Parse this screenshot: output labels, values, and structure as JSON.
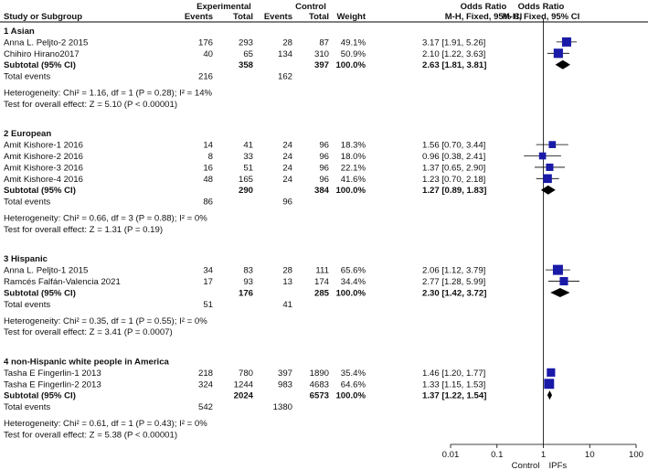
{
  "chart_data": {
    "type": "forest",
    "title": "",
    "header": {
      "study": "Study or Subgroup",
      "group1": "Experimental",
      "group2": "Control",
      "events": "Events",
      "total": "Total",
      "weight": "Weight",
      "effect_title": "Odds Ratio",
      "effect_method": "M-H, Fixed, 95% CI",
      "plot_title": "Odds Ratio",
      "plot_method": "M-H, Fixed, 95% CI"
    },
    "axis": {
      "scale": "log",
      "range": [
        0.01,
        100
      ],
      "ticks": [
        0.01,
        0.1,
        1,
        10,
        100
      ],
      "tick_labels": [
        "0.01",
        "0.1",
        "1",
        "10",
        "100"
      ],
      "null_value": 1,
      "favours_left": "Control",
      "favours_right": "IPFs"
    },
    "subgroups": [
      {
        "name": "1 Asian",
        "studies": [
          {
            "name": "Anna L. Peljto-2 2015",
            "e_events": "176",
            "e_total": "293",
            "c_events": "28",
            "c_total": "87",
            "weight": "49.1%",
            "or_text": "3.17 [1.91, 5.26]",
            "or": 3.17,
            "lo": 1.91,
            "hi": 5.26,
            "w": 49.1
          },
          {
            "name": "Chihiro Hirano2017",
            "e_events": "40",
            "e_total": "65",
            "c_events": "134",
            "c_total": "310",
            "weight": "50.9%",
            "or_text": "2.10 [1.22, 3.63]",
            "or": 2.1,
            "lo": 1.22,
            "hi": 3.63,
            "w": 50.9
          }
        ],
        "subtotal": {
          "label": "Subtotal (95% CI)",
          "e_total": "358",
          "c_total": "397",
          "weight": "100.0%",
          "or_text": "2.63 [1.81, 3.81]",
          "or": 2.63,
          "lo": 1.81,
          "hi": 3.81
        },
        "total_events": {
          "label": "Total events",
          "e": "216",
          "c": "162"
        },
        "heterogeneity": "Heterogeneity: Chi² = 1.16, df = 1 (P = 0.28); I² = 14%",
        "overall": "Test for overall effect: Z = 5.10 (P < 0.00001)"
      },
      {
        "name": "2 European",
        "studies": [
          {
            "name": "Amit Kishore-1 2016",
            "e_events": "14",
            "e_total": "41",
            "c_events": "24",
            "c_total": "96",
            "weight": "18.3%",
            "or_text": "1.56 [0.70, 3.44]",
            "or": 1.56,
            "lo": 0.7,
            "hi": 3.44,
            "w": 18.3
          },
          {
            "name": "Amit Kishore-2 2016",
            "e_events": "8",
            "e_total": "33",
            "c_events": "24",
            "c_total": "96",
            "weight": "18.0%",
            "or_text": "0.96 [0.38, 2.41]",
            "or": 0.96,
            "lo": 0.38,
            "hi": 2.41,
            "w": 18.0
          },
          {
            "name": "Amit Kishore-3 2016",
            "e_events": "16",
            "e_total": "51",
            "c_events": "24",
            "c_total": "96",
            "weight": "22.1%",
            "or_text": "1.37 [0.65, 2.90]",
            "or": 1.37,
            "lo": 0.65,
            "hi": 2.9,
            "w": 22.1
          },
          {
            "name": "Amit Kishore-4 2016",
            "e_events": "48",
            "e_total": "165",
            "c_events": "24",
            "c_total": "96",
            "weight": "41.6%",
            "or_text": "1.23 [0.70, 2.18]",
            "or": 1.23,
            "lo": 0.7,
            "hi": 2.18,
            "w": 41.6
          }
        ],
        "subtotal": {
          "label": "Subtotal (95% CI)",
          "e_total": "290",
          "c_total": "384",
          "weight": "100.0%",
          "or_text": "1.27 [0.89, 1.83]",
          "or": 1.27,
          "lo": 0.89,
          "hi": 1.83
        },
        "total_events": {
          "label": "Total events",
          "e": "86",
          "c": "96"
        },
        "heterogeneity": "Heterogeneity: Chi² = 0.66, df = 3 (P = 0.88); I² = 0%",
        "overall": "Test for overall effect: Z = 1.31 (P = 0.19)"
      },
      {
        "name": "3 Hispanic",
        "studies": [
          {
            "name": "Anna L. Peljto-1 2015",
            "e_events": "34",
            "e_total": "83",
            "c_events": "28",
            "c_total": "111",
            "weight": "65.6%",
            "or_text": "2.06 [1.12, 3.79]",
            "or": 2.06,
            "lo": 1.12,
            "hi": 3.79,
            "w": 65.6
          },
          {
            "name": "Ramcés Falfán-Valencia 2021",
            "e_events": "17",
            "e_total": "93",
            "c_events": "13",
            "c_total": "174",
            "weight": "34.4%",
            "or_text": "2.77 [1.28, 5.99]",
            "or": 2.77,
            "lo": 1.28,
            "hi": 5.99,
            "w": 34.4
          }
        ],
        "subtotal": {
          "label": "Subtotal (95% CI)",
          "e_total": "176",
          "c_total": "285",
          "weight": "100.0%",
          "or_text": "2.30 [1.42, 3.72]",
          "or": 2.3,
          "lo": 1.42,
          "hi": 3.72
        },
        "total_events": {
          "label": "Total events",
          "e": "51",
          "c": "41"
        },
        "heterogeneity": "Heterogeneity: Chi² = 0.35, df = 1 (P = 0.55); I² = 0%",
        "overall": "Test for overall effect: Z = 3.41 (P = 0.0007)"
      },
      {
        "name": "4 non-Hispanic white people in America",
        "studies": [
          {
            "name": "Tasha E Fingerlin-1 2013",
            "e_events": "218",
            "e_total": "780",
            "c_events": "397",
            "c_total": "1890",
            "weight": "35.4%",
            "or_text": "1.46 [1.20, 1.77]",
            "or": 1.46,
            "lo": 1.2,
            "hi": 1.77,
            "w": 35.4
          },
          {
            "name": "Tasha E Fingerlin-2 2013",
            "e_events": "324",
            "e_total": "1244",
            "c_events": "983",
            "c_total": "4683",
            "weight": "64.6%",
            "or_text": "1.33 [1.15, 1.53]",
            "or": 1.33,
            "lo": 1.15,
            "hi": 1.53,
            "w": 64.6
          }
        ],
        "subtotal": {
          "label": "Subtotal (95% CI)",
          "e_total": "2024",
          "c_total": "6573",
          "weight": "100.0%",
          "or_text": "1.37 [1.22, 1.54]",
          "or": 1.37,
          "lo": 1.22,
          "hi": 1.54
        },
        "total_events": {
          "label": "Total events",
          "e": "542",
          "c": "1380"
        },
        "heterogeneity": "Heterogeneity: Chi² = 0.61, df = 1 (P = 0.43); I² = 0%",
        "overall": "Test for overall effect: Z = 5.38 (P < 0.00001)"
      }
    ],
    "colors": {
      "marker": "#1a1aa8",
      "diamond": "#000000",
      "line": "#000000",
      "text": "#111111"
    }
  }
}
